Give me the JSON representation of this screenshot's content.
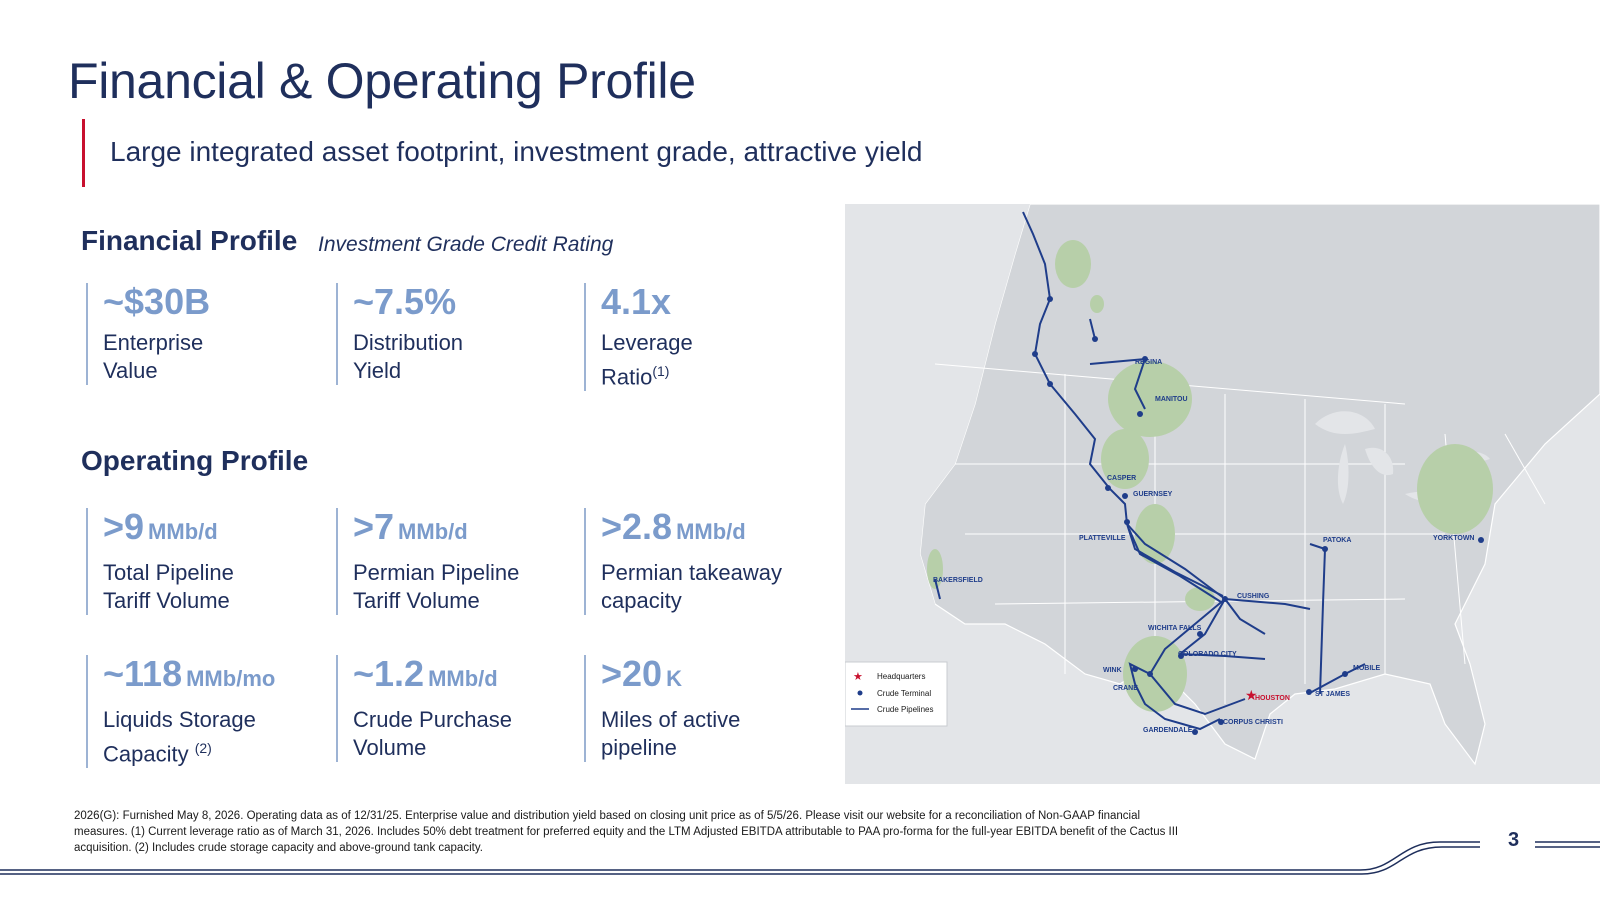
{
  "page": {
    "title": "Financial & Operating Profile",
    "subtitle": "Large integrated asset footprint, investment grade, attractive yield",
    "page_number": "3"
  },
  "financial": {
    "heading": "Financial Profile",
    "note": "Investment Grade Credit Rating",
    "metrics": [
      {
        "value": "~$30B",
        "label1": "Enterprise",
        "label2": "Value"
      },
      {
        "value": "~7.5%",
        "label1": "Distribution",
        "label2": "Yield"
      },
      {
        "value": "4.1x",
        "label1": "Leverage",
        "label2": "Ratio",
        "sup": "(1)"
      }
    ]
  },
  "operating": {
    "heading": "Operating Profile",
    "metrics": [
      {
        "value": ">9",
        "unit": "MMb/d",
        "label1": "Total Pipeline",
        "label2": "Tariff Volume"
      },
      {
        "value": ">7",
        "unit": "MMb/d",
        "label1": "Permian Pipeline",
        "label2": "Tariff Volume"
      },
      {
        "value": ">2.8",
        "unit": "MMb/d",
        "label1": "Permian takeaway",
        "label2": "capacity"
      },
      {
        "value": "~118",
        "unit": "MMb/mo",
        "label1": "Liquids Storage",
        "label2": "Capacity",
        "sup": "(2)"
      },
      {
        "value": "~1.2",
        "unit": "MMb/d",
        "label1": "Crude Purchase",
        "label2": "Volume"
      },
      {
        "value": ">20",
        "unit": "K",
        "label1": "Miles of active",
        "label2": "pipeline"
      }
    ]
  },
  "map": {
    "labels": {
      "regina": "REGINA",
      "manitou": "MANITOU",
      "casper": "CASPER",
      "guernsey": "GUERNSEY",
      "platteville": "PLATTEVILLE",
      "bakersfield": "BAKERSFIELD",
      "cushing": "CUSHING",
      "wichita_falls": "WICHITA FALLS",
      "colorado_city": "COLORADO CITY",
      "wink": "WINK",
      "crane": "CRANE",
      "gardendale": "GARDENDALE",
      "corpus_christi": "CORPUS CHRISTI",
      "houston": "HOUSTON",
      "patoka": "PATOKA",
      "st_james": "ST JAMES",
      "mobile": "MOBILE",
      "yorktown": "YORKTOWN"
    },
    "legend": {
      "headquarters": "Headquarters",
      "terminal": "Crude Terminal",
      "pipelines": "Crude Pipelines"
    },
    "colors": {
      "pipeline": "#1f3d8a",
      "basin": "#b7cfa9",
      "headquarters": "#c8102e",
      "land": "#e3e5e8"
    }
  },
  "footnote": {
    "line1": "2026(G): Furnished May 8, 2026. Operating data as of 12/31/25. Enterprise value and distribution yield based on closing unit price as of 5/5/26.  Please visit our website for a reconciliation of Non-GAAP financial",
    "line2": "measures. (1) Current leverage ratio as of March 31, 2026. Includes 50% debt treatment for preferred equity and the LTM Adjusted EBITDA attributable to PAA pro-forma for the full-year EBITDA benefit of the Cactus III",
    "line3": "acquisition. (2) Includes crude storage capacity and above-ground tank capacity."
  }
}
